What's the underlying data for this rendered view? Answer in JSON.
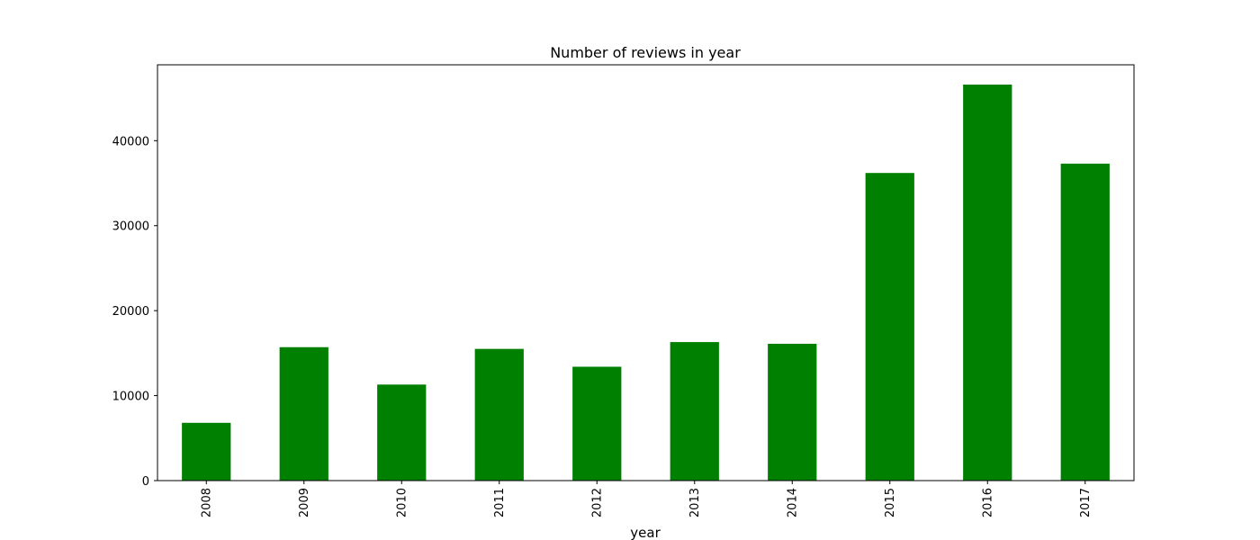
{
  "chart_data": {
    "type": "bar",
    "title": "Number of reviews in year",
    "xlabel": "year",
    "ylabel": "",
    "categories": [
      "2008",
      "2009",
      "2010",
      "2011",
      "2012",
      "2013",
      "2014",
      "2015",
      "2016",
      "2017"
    ],
    "values": [
      6800,
      15700,
      11300,
      15500,
      13400,
      16300,
      16100,
      36200,
      46600,
      37300
    ],
    "yticks": [
      0,
      10000,
      20000,
      30000,
      40000
    ],
    "ytick_labels": [
      "0",
      "10000",
      "20000",
      "30000",
      "40000"
    ],
    "ylim": [
      0,
      48930
    ],
    "bar_color": "#008000",
    "grid": false,
    "legend": "none"
  }
}
